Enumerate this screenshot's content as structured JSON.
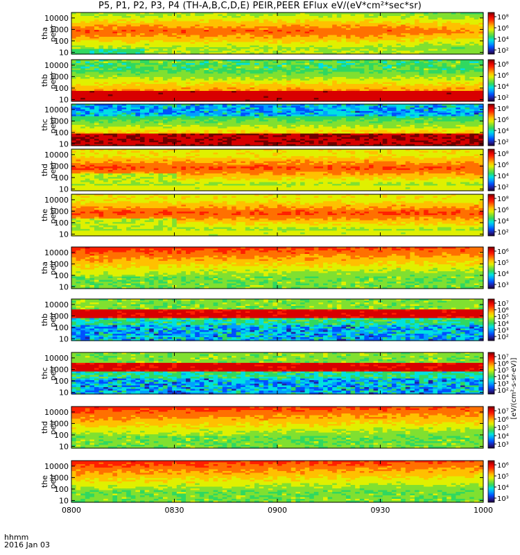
{
  "chart_data": {
    "type": "heatmap",
    "title": "P5, P1, P2, P3, P4 (TH-A,B,C,D,E) PEIR,PEER EFlux eV/(eV*cm²*sec*sr)",
    "x_tick_labels": [
      "0800",
      "0830",
      "0900",
      "0930",
      "1000"
    ],
    "x_label_top": "hhmm",
    "x_label_bottom": "2016 Jan 03",
    "colorbar_label_eflux": "[eV/(cm²-s-sr-eV)]",
    "y_scale": "log",
    "y_range": [
      7,
      30000
    ],
    "y_ticks": [
      10,
      100,
      1000,
      10000
    ],
    "y_tick_labels": [
      "10",
      "100",
      "1000",
      "10000"
    ],
    "cb_scale": "log",
    "panels": [
      {
        "probe": "tha",
        "species": "peer",
        "cb_tick_labels": [
          "10²",
          "10⁴",
          "10⁶",
          "10⁸"
        ]
      },
      {
        "probe": "thb",
        "species": "peer",
        "cb_tick_labels": [
          "10²",
          "10⁴",
          "10⁶",
          "10⁸"
        ]
      },
      {
        "probe": "thc",
        "species": "peer",
        "cb_tick_labels": [
          "10²",
          "10⁴",
          "10⁶",
          "10⁸"
        ]
      },
      {
        "probe": "thd",
        "species": "peer",
        "cb_tick_labels": [
          "10²",
          "10⁴",
          "10⁶",
          "10⁸"
        ]
      },
      {
        "probe": "the",
        "species": "peer",
        "cb_tick_labels": [
          "10²",
          "10⁴",
          "10⁶",
          "10⁸"
        ]
      },
      {
        "probe": "tha",
        "species": "peir",
        "cb_tick_labels": [
          "10³",
          "10⁴",
          "10⁵",
          "10⁶"
        ]
      },
      {
        "probe": "thb",
        "species": "peir",
        "cb_tick_labels": [
          "10²",
          "10³",
          "10⁴",
          "10⁵",
          "10⁶",
          "10⁷"
        ]
      },
      {
        "probe": "thc",
        "species": "peir",
        "cb_tick_labels": [
          "10²",
          "10³",
          "10⁴",
          "10⁵",
          "10⁶",
          "10⁷"
        ]
      },
      {
        "probe": "thd",
        "species": "peir",
        "cb_tick_labels": [
          "10³",
          "10⁴",
          "10⁵",
          "10⁶",
          "10⁷"
        ]
      },
      {
        "probe": "the",
        "species": "peir",
        "cb_tick_labels": [
          "10³",
          "10⁴",
          "10⁵",
          "10⁶"
        ]
      }
    ],
    "colormap": [
      "#1a0033",
      "#2020a0",
      "#0050ff",
      "#00a0ff",
      "#00e0e0",
      "#30d860",
      "#80e030",
      "#e0f000",
      "#ffc000",
      "#ff7000",
      "#ff2000",
      "#d80000",
      "#700000"
    ]
  }
}
